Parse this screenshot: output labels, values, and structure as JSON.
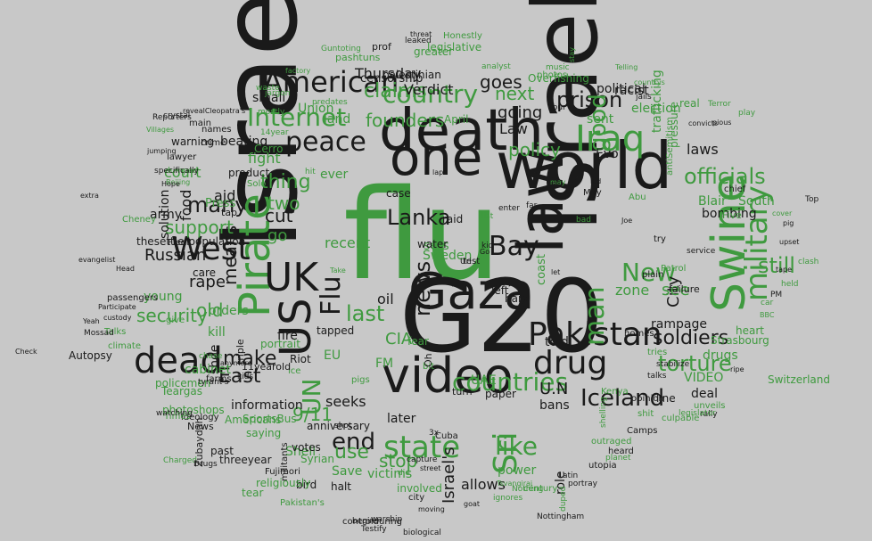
{
  "colors": {
    "background": "#c8c8c8",
    "dark": "#1a1a1a",
    "green": "#3f9a3f"
  },
  "words": [
    {
      "text": "Israel",
      "color": "dark"
    },
    {
      "text": "flu",
      "color": "green"
    },
    {
      "text": "Israeli",
      "color": "dark"
    },
    {
      "text": "G20",
      "color": "dark"
    },
    {
      "text": "world",
      "color": "dark"
    },
    {
      "text": "death",
      "color": "dark"
    },
    {
      "text": "video",
      "color": "dark"
    },
    {
      "text": "Gaza",
      "color": "dark"
    },
    {
      "text": "one",
      "color": "dark"
    },
    {
      "text": "law",
      "color": "dark"
    },
    {
      "text": "Pakistan",
      "color": "dark"
    },
    {
      "text": "dead",
      "color": "dark"
    },
    {
      "text": "Iraq",
      "color": "green"
    },
    {
      "text": "Pirate",
      "color": "green"
    },
    {
      "text": "Swine",
      "color": "green"
    },
    {
      "text": "UK",
      "color": "dark"
    },
    {
      "text": "US",
      "color": "dark"
    },
    {
      "text": "West",
      "color": "dark"
    },
    {
      "text": "country",
      "color": "green"
    },
    {
      "text": "peace",
      "color": "dark"
    },
    {
      "text": "American",
      "color": "dark"
    },
    {
      "text": "Internet",
      "color": "green"
    },
    {
      "text": "drug",
      "color": "dark"
    },
    {
      "text": "state",
      "color": "green"
    },
    {
      "text": "countries",
      "color": "green"
    },
    {
      "text": "military",
      "color": "green"
    },
    {
      "text": "Bay",
      "color": "dark"
    },
    {
      "text": "Lanka",
      "color": "dark"
    },
    {
      "text": "news",
      "color": "dark"
    },
    {
      "text": "man",
      "color": "green"
    },
    {
      "text": "Sri",
      "color": "green"
    },
    {
      "text": "UN",
      "color": "green"
    },
    {
      "text": "Flu",
      "color": "dark"
    },
    {
      "text": "Iceland",
      "color": "dark"
    },
    {
      "text": "officials",
      "color": "green"
    },
    {
      "text": "New",
      "color": "green"
    },
    {
      "text": "many",
      "color": "dark"
    },
    {
      "text": "end",
      "color": "dark"
    },
    {
      "text": "like",
      "color": "green"
    },
    {
      "text": "still",
      "color": "green"
    },
    {
      "text": "prison",
      "color": "dark"
    },
    {
      "text": "soldiers",
      "color": "dark"
    },
    {
      "text": "torture",
      "color": "green"
    },
    {
      "text": "policy",
      "color": "green"
    },
    {
      "text": "security",
      "color": "green"
    },
    {
      "text": "goes",
      "color": "dark"
    },
    {
      "text": "claims",
      "color": "green"
    },
    {
      "text": "founders",
      "color": "green"
    },
    {
      "text": "make",
      "color": "dark"
    },
    {
      "text": "East",
      "color": "dark"
    },
    {
      "text": "last",
      "color": "green"
    },
    {
      "text": "use",
      "color": "green"
    },
    {
      "text": "stop",
      "color": "green"
    },
    {
      "text": "9/11",
      "color": "green"
    },
    {
      "text": "Israel's",
      "color": "dark"
    },
    {
      "text": "CIA",
      "color": "green"
    },
    {
      "text": "old",
      "color": "green"
    },
    {
      "text": "means",
      "color": "dark"
    },
    {
      "text": "Russian",
      "color": "dark"
    },
    {
      "text": "support",
      "color": "green"
    },
    {
      "text": "City",
      "color": "dark"
    },
    {
      "text": "see",
      "color": "green"
    },
    {
      "text": "thing",
      "color": "green"
    },
    {
      "text": "two",
      "color": "green"
    },
    {
      "text": "cut",
      "color": "dark"
    },
    {
      "text": "go",
      "color": "green"
    },
    {
      "text": "next",
      "color": "green"
    },
    {
      "text": "going",
      "color": "dark"
    },
    {
      "text": "U.N",
      "color": "dark"
    },
    {
      "text": "Verdict",
      "color": "dark"
    },
    {
      "text": "Law",
      "color": "dark"
    },
    {
      "text": "good",
      "color": "green"
    },
    {
      "text": "laws",
      "color": "dark"
    },
    {
      "text": "Blair",
      "color": "green"
    },
    {
      "text": "South",
      "color": "green"
    },
    {
      "text": "bombing",
      "color": "dark"
    },
    {
      "text": "zone",
      "color": "green"
    },
    {
      "text": "VIDEO",
      "color": "green"
    },
    {
      "text": "drugs",
      "color": "green"
    },
    {
      "text": "rampage",
      "color": "dark"
    },
    {
      "text": "Strasbourg",
      "color": "green"
    },
    {
      "text": "information",
      "color": "dark"
    },
    {
      "text": "Americans",
      "color": "green"
    },
    {
      "text": "saying",
      "color": "green"
    },
    {
      "text": "Shell",
      "color": "green"
    },
    {
      "text": "Save",
      "color": "green"
    },
    {
      "text": "victims",
      "color": "green"
    },
    {
      "text": "involved",
      "color": "green"
    },
    {
      "text": "allows",
      "color": "dark"
    },
    {
      "text": "power",
      "color": "green"
    },
    {
      "text": "role",
      "color": "dark"
    },
    {
      "text": "seeks",
      "color": "dark"
    },
    {
      "text": "fight",
      "color": "green"
    },
    {
      "text": "beating",
      "color": "dark"
    },
    {
      "text": "warning",
      "color": "dark"
    },
    {
      "text": "court",
      "color": "green"
    },
    {
      "text": "rape",
      "color": "dark"
    },
    {
      "text": "aid",
      "color": "dark"
    },
    {
      "text": "army",
      "color": "dark"
    },
    {
      "text": "food",
      "color": "dark"
    },
    {
      "text": "care",
      "color": "dark"
    },
    {
      "text": "orders",
      "color": "green"
    },
    {
      "text": "kill",
      "color": "green"
    },
    {
      "text": "shoe",
      "color": "dark"
    },
    {
      "text": "cabinet",
      "color": "green"
    },
    {
      "text": "policemen",
      "color": "green"
    },
    {
      "text": "photoshops",
      "color": "green"
    },
    {
      "text": "Thursday",
      "color": "dark"
    },
    {
      "text": "recent",
      "color": "green"
    },
    {
      "text": "ever",
      "color": "green"
    },
    {
      "text": "land",
      "color": "green"
    },
    {
      "text": "small",
      "color": "dark"
    },
    {
      "text": "Union",
      "color": "green"
    },
    {
      "text": "solution",
      "color": "dark"
    },
    {
      "text": "young",
      "color": "green"
    },
    {
      "text": "oil",
      "color": "dark"
    },
    {
      "text": "fire",
      "color": "dark"
    },
    {
      "text": "EU",
      "color": "green"
    },
    {
      "text": "Riot",
      "color": "dark"
    },
    {
      "text": "FM",
      "color": "green"
    },
    {
      "text": "UAE",
      "color": "green"
    },
    {
      "text": "later",
      "color": "dark"
    },
    {
      "text": "told",
      "color": "dark"
    },
    {
      "text": "bans",
      "color": "dark"
    },
    {
      "text": "deal",
      "color": "dark"
    },
    {
      "text": "heart",
      "color": "green"
    },
    {
      "text": "Switzerland",
      "color": "green"
    },
    {
      "text": "Check",
      "color": "dark"
    },
    {
      "text": "Autopsy",
      "color": "dark"
    },
    {
      "text": "racist",
      "color": "dark"
    },
    {
      "text": "election",
      "color": "green"
    },
    {
      "text": "real",
      "color": "green"
    },
    {
      "text": "political",
      "color": "dark"
    },
    {
      "text": "pressure",
      "color": "green"
    },
    {
      "text": "trafficking",
      "color": "green"
    },
    {
      "text": "chief",
      "color": "dark"
    },
    {
      "text": "antiSemitism",
      "color": "green"
    },
    {
      "text": "Evo",
      "color": "dark"
    },
    {
      "text": "sent",
      "color": "green"
    },
    {
      "text": "April",
      "color": "green"
    },
    {
      "text": "names",
      "color": "dark"
    },
    {
      "text": "main",
      "color": "dark"
    },
    {
      "text": "crime",
      "color": "dark"
    },
    {
      "text": "lawyer",
      "color": "dark"
    },
    {
      "text": "dumped",
      "color": "green"
    },
    {
      "text": "Beijing",
      "color": "green"
    },
    {
      "text": "extra",
      "color": "dark"
    },
    {
      "text": "Hope",
      "color": "dark"
    },
    {
      "text": "thesettlerpopulation",
      "color": "dark"
    },
    {
      "text": "Fleet",
      "color": "dark"
    },
    {
      "text": "Press",
      "color": "green"
    },
    {
      "text": "give",
      "color": "green"
    },
    {
      "text": "Talks",
      "color": "green"
    },
    {
      "text": "climate",
      "color": "green"
    },
    {
      "text": "Mossad",
      "color": "dark"
    },
    {
      "text": "passengers",
      "color": "dark"
    },
    {
      "text": "Participate",
      "color": "dark"
    },
    {
      "text": "Yeah",
      "color": "dark"
    },
    {
      "text": "custody",
      "color": "dark"
    },
    {
      "text": "Head",
      "color": "dark"
    },
    {
      "text": "evangelist",
      "color": "dark"
    },
    {
      "text": "Cheney",
      "color": "green"
    },
    {
      "text": "portrait",
      "color": "green"
    },
    {
      "text": "tapped",
      "color": "dark"
    },
    {
      "text": "Take",
      "color": "green"
    },
    {
      "text": "ice",
      "color": "green"
    },
    {
      "text": "pigs",
      "color": "green"
    },
    {
      "text": "turn",
      "color": "dark"
    },
    {
      "text": "paper",
      "color": "dark"
    },
    {
      "text": "fear",
      "color": "green"
    },
    {
      "text": "bit",
      "color": "green"
    },
    {
      "text": "Oh",
      "color": "dark"
    },
    {
      "text": "left",
      "color": "dark"
    },
    {
      "text": "hard",
      "color": "dark"
    },
    {
      "text": "coast",
      "color": "green"
    },
    {
      "text": "sets",
      "color": "green"
    },
    {
      "text": "Sweden",
      "color": "green"
    },
    {
      "text": "water",
      "color": "dark"
    },
    {
      "text": "case",
      "color": "dark"
    },
    {
      "text": "hit",
      "color": "green"
    },
    {
      "text": "raid",
      "color": "dark"
    },
    {
      "text": "test",
      "color": "dark"
    },
    {
      "text": "Uri",
      "color": "dark"
    },
    {
      "text": "Go",
      "color": "dark"
    },
    {
      "text": "kid",
      "color": "dark"
    },
    {
      "text": "list",
      "color": "green"
    },
    {
      "text": "enter",
      "color": "dark"
    },
    {
      "text": "far",
      "color": "dark"
    },
    {
      "text": "let",
      "color": "dark"
    },
    {
      "text": "May",
      "color": "dark"
    },
    {
      "text": "Joe",
      "color": "dark"
    },
    {
      "text": "try",
      "color": "dark"
    },
    {
      "text": "plain",
      "color": "dark"
    },
    {
      "text": "Patrol",
      "color": "green"
    },
    {
      "text": "service",
      "color": "dark"
    },
    {
      "text": "failure",
      "color": "dark"
    },
    {
      "text": "homes",
      "color": "dark"
    },
    {
      "text": "tries",
      "color": "green"
    },
    {
      "text": "talks",
      "color": "dark"
    },
    {
      "text": "stabilize",
      "color": "dark"
    },
    {
      "text": "opinion",
      "color": "dark"
    },
    {
      "text": "Kenya",
      "color": "green"
    },
    {
      "text": "line",
      "color": "dark"
    },
    {
      "text": "unveils",
      "color": "green"
    },
    {
      "text": "rally",
      "color": "dark"
    },
    {
      "text": "culpable",
      "color": "green"
    },
    {
      "text": "legislator",
      "color": "green"
    },
    {
      "text": "shit",
      "color": "green"
    },
    {
      "text": "Camps",
      "color": "dark"
    },
    {
      "text": "shelling",
      "color": "green"
    },
    {
      "text": "outraged",
      "color": "green"
    },
    {
      "text": "planet",
      "color": "green"
    },
    {
      "text": "heard",
      "color": "dark"
    },
    {
      "text": "utopia",
      "color": "dark"
    },
    {
      "text": "Latin",
      "color": "dark"
    },
    {
      "text": "portray",
      "color": "dark"
    },
    {
      "text": "Nottingham",
      "color": "dark"
    },
    {
      "text": "duped",
      "color": "green"
    },
    {
      "text": "Tsvangirai",
      "color": "green"
    },
    {
      "text": "century",
      "color": "green"
    },
    {
      "text": "goat",
      "color": "dark"
    },
    {
      "text": "ignores",
      "color": "green"
    },
    {
      "text": "Nothing",
      "color": "green"
    },
    {
      "text": "street",
      "color": "dark"
    },
    {
      "text": "city",
      "color": "dark"
    },
    {
      "text": "moving",
      "color": "dark"
    },
    {
      "text": "controlduring",
      "color": "dark"
    },
    {
      "text": "warship",
      "color": "dark"
    },
    {
      "text": "biological",
      "color": "dark"
    },
    {
      "text": "Testify",
      "color": "dark"
    },
    {
      "text": "capture",
      "color": "dark"
    },
    {
      "text": "die",
      "color": "green"
    },
    {
      "text": "3x",
      "color": "dark"
    },
    {
      "text": "Cuba",
      "color": "dark"
    },
    {
      "text": "bird",
      "color": "dark"
    },
    {
      "text": "votes",
      "color": "dark"
    },
    {
      "text": "threeyear",
      "color": "dark"
    },
    {
      "text": "past",
      "color": "dark"
    },
    {
      "text": "News",
      "color": "dark"
    },
    {
      "text": "ideology",
      "color": "dark"
    },
    {
      "text": "Charged",
      "color": "green"
    },
    {
      "text": "Drugs",
      "color": "dark"
    },
    {
      "text": "Zubaydah",
      "color": "dark"
    },
    {
      "text": "Teargas",
      "color": "green"
    },
    {
      "text": "SportsBus",
      "color": "green"
    },
    {
      "text": "religiously",
      "color": "green"
    },
    {
      "text": "tear",
      "color": "green"
    },
    {
      "text": "Pakistan's",
      "color": "green"
    },
    {
      "text": "Syrian",
      "color": "green"
    },
    {
      "text": "Times",
      "color": "green"
    },
    {
      "text": "watching",
      "color": "dark"
    },
    {
      "text": "tyrant's",
      "color": "dark"
    },
    {
      "text": "kids",
      "color": "dark"
    },
    {
      "text": "farms",
      "color": "dark"
    },
    {
      "text": "chase",
      "color": "green"
    },
    {
      "text": "anymore",
      "color": "dark"
    },
    {
      "text": "11yearold",
      "color": "dark"
    },
    {
      "text": "triple",
      "color": "dark"
    },
    {
      "text": "militants",
      "color": "dark"
    },
    {
      "text": "Fujimori",
      "color": "dark"
    },
    {
      "text": "halt",
      "color": "dark"
    },
    {
      "text": "begins",
      "color": "dark"
    },
    {
      "text": "anniversary",
      "color": "dark"
    },
    {
      "text": "shot",
      "color": "dark"
    },
    {
      "text": "leaked",
      "color": "dark"
    },
    {
      "text": "threat",
      "color": "dark"
    },
    {
      "text": "prof",
      "color": "dark"
    },
    {
      "text": "greater",
      "color": "green"
    },
    {
      "text": "legislative",
      "color": "green"
    },
    {
      "text": "Guntoting",
      "color": "green"
    },
    {
      "text": "pashtuns",
      "color": "green"
    },
    {
      "text": "palestinian",
      "color": "dark"
    },
    {
      "text": "censorship",
      "color": "dark"
    },
    {
      "text": "Honestly",
      "color": "green"
    },
    {
      "text": "analyst",
      "color": "green"
    },
    {
      "text": "music",
      "color": "green"
    },
    {
      "text": "photos",
      "color": "green"
    },
    {
      "text": "Four",
      "color": "dark"
    },
    {
      "text": "stay",
      "color": "green"
    },
    {
      "text": "Overfishing",
      "color": "green"
    },
    {
      "text": "factory",
      "color": "green"
    },
    {
      "text": "waste",
      "color": "green"
    },
    {
      "text": "revealCleopatra's",
      "color": "dark"
    },
    {
      "text": "Reporters",
      "color": "dark"
    },
    {
      "text": "Villages",
      "color": "green"
    },
    {
      "text": "crystal",
      "color": "dark"
    },
    {
      "text": "jumping",
      "color": "dark"
    },
    {
      "text": "specifically",
      "color": "dark"
    },
    {
      "text": "predates",
      "color": "green"
    },
    {
      "text": "14year",
      "color": "green"
    },
    {
      "text": "jargon",
      "color": "green"
    },
    {
      "text": "mostly",
      "color": "green"
    },
    {
      "text": "Telling",
      "color": "green"
    },
    {
      "text": "countrys",
      "color": "green"
    },
    {
      "text": "jails",
      "color": "dark"
    },
    {
      "text": "convicts",
      "color": "dark"
    },
    {
      "text": "Terror",
      "color": "green"
    },
    {
      "text": "pious",
      "color": "dark"
    },
    {
      "text": "play",
      "color": "green"
    },
    {
      "text": "Top",
      "color": "dark"
    },
    {
      "text": "tape",
      "color": "dark"
    },
    {
      "text": "upset",
      "color": "dark"
    },
    {
      "text": "pig",
      "color": "dark"
    },
    {
      "text": "cover",
      "color": "green"
    },
    {
      "text": "held",
      "color": "green"
    },
    {
      "text": "PM",
      "color": "dark"
    },
    {
      "text": "car",
      "color": "green"
    },
    {
      "text": "ripe",
      "color": "dark"
    },
    {
      "text": "BBC",
      "color": "green"
    },
    {
      "text": "Five",
      "color": "green"
    },
    {
      "text": "Abu",
      "color": "green"
    },
    {
      "text": "led",
      "color": "dark"
    },
    {
      "text": "bad",
      "color": "green"
    },
    {
      "text": "may",
      "color": "green"
    },
    {
      "text": "clash",
      "color": "green"
    },
    {
      "text": "lap",
      "color": "dark"
    },
    {
      "text": "tap",
      "color": "dark"
    },
    {
      "text": "product",
      "color": "dark"
    },
    {
      "text": "Cerro",
      "color": "green"
    },
    {
      "text": "Solo",
      "color": "green"
    }
  ]
}
